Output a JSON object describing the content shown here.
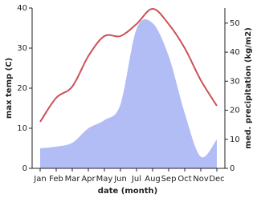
{
  "chart_data": {
    "type": "line",
    "x_label": "date (month)",
    "y_label": "max temp (C)",
    "y2_label": "med. precipitation (kg/m2)",
    "categories": [
      "Jan",
      "Feb",
      "Mar",
      "Apr",
      "May",
      "Jun",
      "Jul",
      "Aug",
      "Sep",
      "Oct",
      "Nov",
      "Dec"
    ],
    "series": [
      {
        "name": "med. precipitation",
        "type": "area",
        "axis": "y2",
        "color": "#b3bdf5",
        "values": [
          6.9,
          7.5,
          8.8,
          13.8,
          16.6,
          22,
          48,
          50,
          38.7,
          19,
          4,
          10
        ]
      },
      {
        "name": "max temp",
        "type": "line",
        "color": "#cd5155",
        "values": [
          11.6,
          17.6,
          20.4,
          28,
          33,
          33,
          36,
          39.8,
          36,
          30,
          22,
          15.6
        ]
      }
    ],
    "ylim": [
      0,
      40
    ],
    "yticks": [
      0,
      10,
      20,
      30,
      40
    ],
    "y2lim": [
      0,
      55.2
    ],
    "y2ticks": [
      0,
      10,
      20,
      30,
      40,
      50
    ]
  }
}
